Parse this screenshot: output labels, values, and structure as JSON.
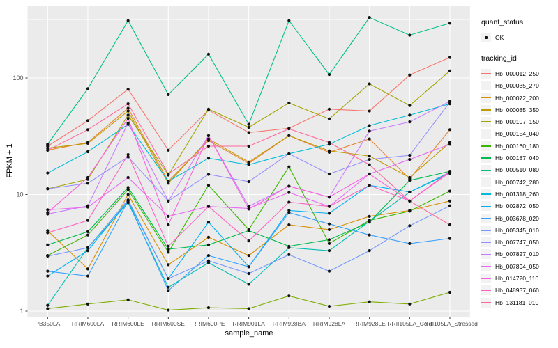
{
  "legend": {
    "quant_status_title": "quant_status",
    "ok_label": "OK",
    "tracking_id_title": "tracking_id"
  },
  "style": {
    "panel_bg": "#EBEBEB",
    "grid_color": "#FFFFFF",
    "tick_text_color": "#4D4D4D",
    "point_color": "#111111",
    "legend_key_bg": "#F2F2F2"
  },
  "chart_data": {
    "type": "line",
    "title": "",
    "xlabel": "sample_name",
    "ylabel": "FPKM + 1",
    "y_scale": "log10",
    "y_ticks": [
      1,
      10,
      100
    ],
    "y_tick_labels": [
      "1",
      "10",
      "100"
    ],
    "y_minor_ticks": [
      3.162,
      31.62,
      316.2
    ],
    "ylim": [
      1,
      412
    ],
    "grid": "on",
    "legend_position": "right",
    "quant_status_value": "OK",
    "x_categories": [
      "PB350LA",
      "RRIM600LA",
      "RRIM600LE",
      "RRIM600SE",
      "RRIM600PE",
      "RRIM901LA",
      "RRIM928BA",
      "RRIM928LA",
      "RRIM928LE",
      "RRII105LA_Cold",
      "RRII105LA_Stressed"
    ],
    "series": [
      {
        "name": "Hb_000012_250",
        "color": "#F8766D",
        "values": [
          26,
          43,
          80,
          24,
          53,
          34,
          37,
          54,
          52,
          106,
          150
        ]
      },
      {
        "name": "Hb_000035_270",
        "color": "#EA8331",
        "values": [
          24,
          28,
          55,
          13,
          29,
          18.5,
          32,
          23,
          30,
          13.6,
          36
        ]
      },
      {
        "name": "Hb_000072_200",
        "color": "#D89000",
        "values": [
          4.9,
          2.3,
          10,
          2.5,
          4.3,
          3,
          5.5,
          5,
          6.5,
          7.3,
          8.8
        ]
      },
      {
        "name": "Hb_000085_350",
        "color": "#C09B00",
        "values": [
          25,
          27.5,
          52,
          12.5,
          30,
          19,
          32,
          23.7,
          21.4,
          14,
          28
        ]
      },
      {
        "name": "Hb_000107_150",
        "color": "#A3A500",
        "values": [
          11.2,
          13.5,
          48,
          14.7,
          54,
          37.7,
          61,
          44.6,
          89,
          58,
          115
        ]
      },
      {
        "name": "Hb_000154_040",
        "color": "#7CAE00",
        "values": [
          1.05,
          1.15,
          1.25,
          1.02,
          1.07,
          1.05,
          1.35,
          1.1,
          1.2,
          1.15,
          1.45
        ]
      },
      {
        "name": "Hb_000160_180",
        "color": "#39B600",
        "values": [
          3,
          4.5,
          11,
          3.2,
          12,
          5,
          17.3,
          3.8,
          6,
          7.2,
          10.7
        ]
      },
      {
        "name": "Hb_000187_040",
        "color": "#00BB4E",
        "values": [
          3.7,
          4.8,
          11.5,
          3.4,
          3.7,
          4.9,
          3.6,
          4.1,
          5.8,
          13.2,
          15.8
        ]
      },
      {
        "name": "Hb_000510_080",
        "color": "#00C087",
        "values": [
          27,
          81,
          310,
          72,
          160,
          40,
          310,
          107,
          330,
          233,
          295
        ]
      },
      {
        "name": "Hb_000742_280",
        "color": "#00C0B2",
        "values": [
          1.12,
          3.5,
          8.5,
          1.6,
          2.6,
          1.7,
          3.5,
          3.3,
          5.9,
          10.5,
          15.2
        ]
      },
      {
        "name": "Hb_001318_260",
        "color": "#00BCD8",
        "values": [
          15.3,
          23.3,
          40,
          13,
          20.5,
          18,
          22.4,
          27,
          39,
          48,
          60
        ]
      },
      {
        "name": "Hb_002872_050",
        "color": "#00B0F6",
        "values": [
          2,
          3.3,
          8.8,
          1.9,
          5.8,
          2.4,
          7.3,
          6.9,
          12,
          10.5,
          15.5
        ]
      },
      {
        "name": "Hb_003678_020",
        "color": "#35A2FF",
        "values": [
          2.2,
          2,
          8.8,
          1.5,
          3,
          2.4,
          7,
          5.6,
          4.5,
          3.8,
          4.2
        ]
      },
      {
        "name": "Hb_005345_010",
        "color": "#7499FF",
        "values": [
          2.96,
          3.5,
          9,
          1.9,
          2.7,
          2.1,
          3.05,
          2.2,
          3.3,
          5.4,
          8
        ]
      },
      {
        "name": "Hb_007747_050",
        "color": "#9590FF",
        "values": [
          11.2,
          12.5,
          21,
          8.8,
          14.9,
          12.9,
          22.4,
          15,
          20,
          21.7,
          62
        ]
      },
      {
        "name": "Hb_007827_010",
        "color": "#C77CFF",
        "values": [
          6.8,
          8,
          41,
          8.8,
          32,
          7.9,
          11.8,
          9.5,
          35,
          42,
          63
        ]
      },
      {
        "name": "Hb_007894_050",
        "color": "#E76BF3",
        "values": [
          7.4,
          7.8,
          14,
          6.5,
          7.9,
          7.6,
          10.4,
          7.9,
          15,
          20,
          27
        ]
      },
      {
        "name": "Hb_014720_110",
        "color": "#FA62DB",
        "values": [
          7,
          14,
          45,
          5.5,
          32,
          7.5,
          11.8,
          9.5,
          15,
          8.8,
          15.8
        ]
      },
      {
        "name": "Hb_048937_060",
        "color": "#FF61C2",
        "values": [
          4.7,
          6,
          22,
          3.6,
          7.9,
          4,
          8.6,
          7.9,
          12,
          8.8,
          15.5
        ]
      },
      {
        "name": "Hb_131181_010",
        "color": "#FF689E",
        "values": [
          24,
          36,
          60,
          15,
          26,
          26,
          36.6,
          28,
          18,
          8.8,
          5.5
        ]
      }
    ]
  }
}
